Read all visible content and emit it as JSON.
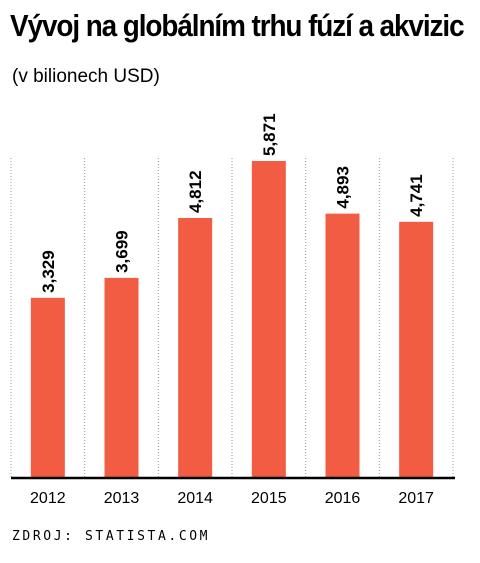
{
  "title": "Vývoj na globálním trhu fúzí a akvizic",
  "subtitle": "(v bilionech USD)",
  "source": "ZDROJ: STATISTA.COM",
  "colors": {
    "bar": "#F25C43",
    "axis": "#000000",
    "grid": "#9a9a9a"
  },
  "chart_data": {
    "type": "bar",
    "categories": [
      "2012",
      "2013",
      "2014",
      "2015",
      "2016",
      "2017"
    ],
    "values": [
      3.329,
      3.699,
      4.812,
      5.871,
      4.893,
      4.741
    ],
    "value_labels": [
      "3,329",
      "3,699",
      "4,812",
      "5,871",
      "4,893",
      "4,741"
    ],
    "title": "Vývoj na globálním trhu fúzí a akvizic",
    "subtitle": "(v bilionech USD)",
    "xlabel": "",
    "ylabel": "",
    "ylim": [
      0,
      5.871
    ],
    "grid": "vertical-dotted",
    "legend": "none"
  }
}
